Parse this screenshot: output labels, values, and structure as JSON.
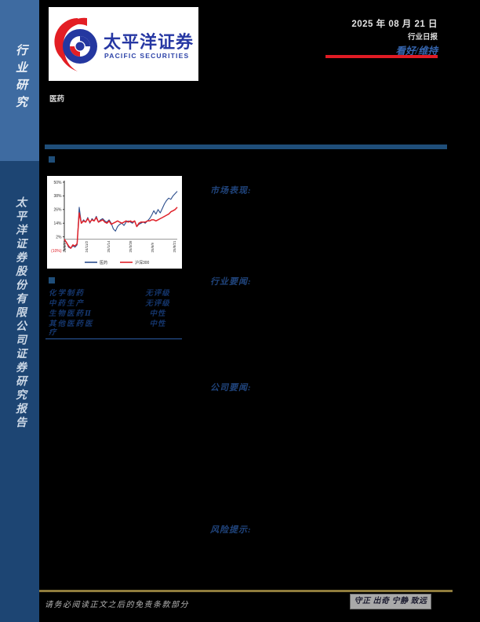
{
  "sidebar": {
    "top_label": "行业研究",
    "bottom_label": "太平洋证券股份有限公司证券研究报告"
  },
  "header": {
    "logo_cn": "太平洋证券",
    "logo_en": "PACIFIC SECURITIES",
    "date": "2025 年 08 月 21 日",
    "report_type": "行业日报",
    "rating": "看好/维持"
  },
  "industry_label": "医药",
  "sections": {
    "market": "市场表现:",
    "industry_news": "行业要闻:",
    "company_news": "公司要闻:",
    "risk": "风险提示:"
  },
  "ratings_table": {
    "rows": [
      {
        "name": "化学制药",
        "rating": "无评级"
      },
      {
        "name": "中药生产",
        "rating": "无评级"
      },
      {
        "name": "生物医药Ⅱ",
        "rating": "中性"
      },
      {
        "name": "其他医药医疗",
        "rating": "中性"
      }
    ]
  },
  "footer": {
    "disclaimer": "请务必阅读正文之后的免责条款部分",
    "motto": "守正 出奇 宁静 致远"
  },
  "colors": {
    "sidebar_top": "#3e6ba1",
    "sidebar_bottom": "#1d4573",
    "accent_blue": "#1f4e79",
    "rating_blue": "#3565ae",
    "red": "#e01b24",
    "gold": "#8f7c3c"
  },
  "chart_data": {
    "type": "line",
    "title": "",
    "xlabel": "",
    "ylabel": "",
    "ylim": [
      -10,
      50
    ],
    "y_ticks": [
      50,
      38,
      26,
      14,
      2,
      -10
    ],
    "y_tick_labels": [
      "50%",
      "38%",
      "26%",
      "14%",
      "2%",
      "(10%)"
    ],
    "x_tick_labels": [
      "24/8/21",
      "24/11/2",
      "25/1/14",
      "25/3/28",
      "25/6/9",
      "25/8/21"
    ],
    "legend_position": "bottom",
    "grid": false,
    "series": [
      {
        "name": "医药",
        "color": "#2b4d8c",
        "values": [
          0,
          -3,
          -7,
          -8,
          -6,
          -7,
          -5,
          28,
          14,
          17,
          15,
          19,
          14,
          18,
          16,
          20,
          15,
          17,
          18,
          16,
          15,
          17,
          14,
          9,
          7,
          11,
          13,
          14,
          12,
          15,
          16,
          15,
          14,
          16,
          11,
          13,
          14,
          15,
          14,
          16,
          18,
          21,
          25,
          22,
          26,
          23,
          27,
          31,
          34,
          36,
          35,
          38,
          40,
          42
        ]
      },
      {
        "name": "沪深300",
        "color": "#e0222a",
        "values": [
          0,
          -3,
          -6,
          -8,
          -5,
          -6,
          -4,
          23,
          14,
          16,
          15,
          18,
          15,
          17,
          16,
          19,
          15,
          16,
          17,
          15,
          14,
          16,
          13,
          14,
          15,
          16,
          15,
          14,
          15,
          16,
          15,
          16,
          15,
          16,
          11,
          14,
          15,
          15,
          15,
          16,
          16,
          17,
          17,
          16,
          17,
          18,
          19,
          20,
          21,
          22,
          24,
          25,
          26,
          28
        ]
      }
    ]
  }
}
